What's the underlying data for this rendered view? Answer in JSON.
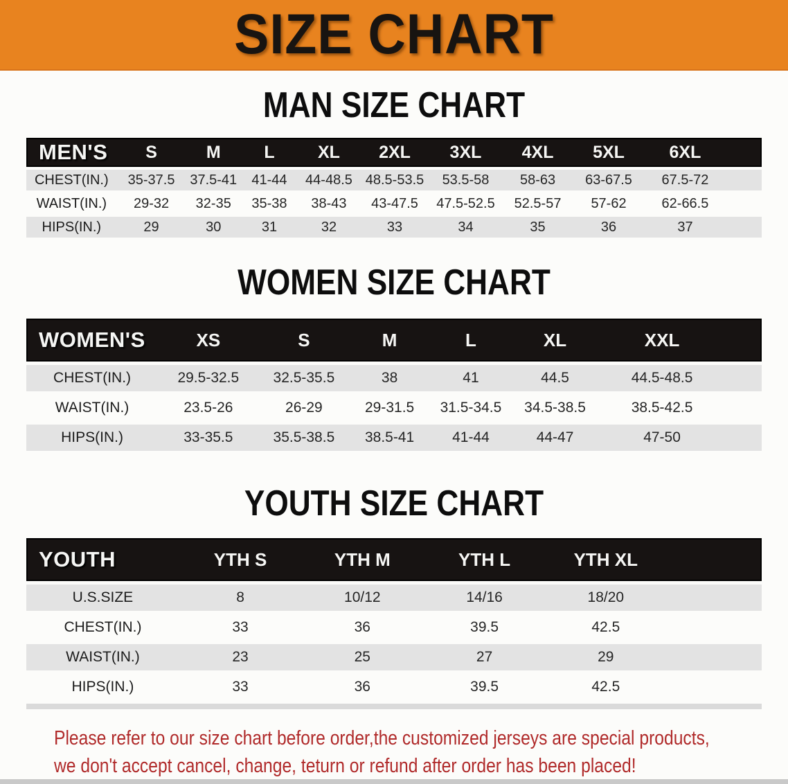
{
  "banner": {
    "title": "SIZE CHART"
  },
  "sections": [
    {
      "heading": "MAN SIZE CHART",
      "table": {
        "label": "MEN'S",
        "columns": [
          "S",
          "M",
          "L",
          "XL",
          "2XL",
          "3XL",
          "4XL",
          "5XL",
          "6XL"
        ],
        "rows": [
          {
            "label": "CHEST(IN.)",
            "values": [
              "35-37.5",
              "37.5-41",
              "41-44",
              "44-48.5",
              "48.5-53.5",
              "53.5-58",
              "58-63",
              "63-67.5",
              "67.5-72"
            ]
          },
          {
            "label": "WAIST(IN.)",
            "values": [
              "29-32",
              "32-35",
              "35-38",
              "38-43",
              "43-47.5",
              "47.5-52.5",
              "52.5-57",
              "57-62",
              "62-66.5"
            ]
          },
          {
            "label": "HIPS(IN.)",
            "values": [
              "29",
              "30",
              "31",
              "32",
              "33",
              "34",
              "35",
              "36",
              "37"
            ]
          }
        ]
      }
    },
    {
      "heading": "WOMEN SIZE CHART",
      "table": {
        "label": "WOMEN'S",
        "columns": [
          "XS",
          "S",
          "M",
          "L",
          "XL",
          "XXL"
        ],
        "rows": [
          {
            "label": "CHEST(IN.)",
            "values": [
              "29.5-32.5",
              "32.5-35.5",
              "38",
              "41",
              "44.5",
              "44.5-48.5"
            ]
          },
          {
            "label": "WAIST(IN.)",
            "values": [
              "23.5-26",
              "26-29",
              "29-31.5",
              "31.5-34.5",
              "34.5-38.5",
              "38.5-42.5"
            ]
          },
          {
            "label": "HIPS(IN.)",
            "values": [
              "33-35.5",
              "35.5-38.5",
              "38.5-41",
              "41-44",
              "44-47",
              "47-50"
            ]
          }
        ]
      }
    },
    {
      "heading": "YOUTH SIZE CHART",
      "table": {
        "label": "YOUTH",
        "columns": [
          "YTH S",
          "YTH M",
          "YTH L",
          "YTH XL"
        ],
        "rows": [
          {
            "label": "U.S.SIZE",
            "values": [
              "8",
              "10/12",
              "14/16",
              "18/20"
            ]
          },
          {
            "label": "CHEST(IN.)",
            "values": [
              "33",
              "36",
              "39.5",
              "42.5"
            ]
          },
          {
            "label": "WAIST(IN.)",
            "values": [
              "23",
              "25",
              "27",
              "29"
            ]
          },
          {
            "label": "HIPS(IN.)",
            "values": [
              "33",
              "36",
              "39.5",
              "42.5"
            ]
          }
        ]
      }
    }
  ],
  "footer": {
    "lines": [
      "Please refer to our size chart before order,the customized jerseys are special products,",
      "we don't accept cancel, change, teturn or refund after order has been placed!"
    ]
  },
  "colors": {
    "banner_bg": "#e8831f",
    "header_bar": "#171312",
    "row_stripe": "#e3e3e3",
    "notice_red": "#b02a2a"
  }
}
